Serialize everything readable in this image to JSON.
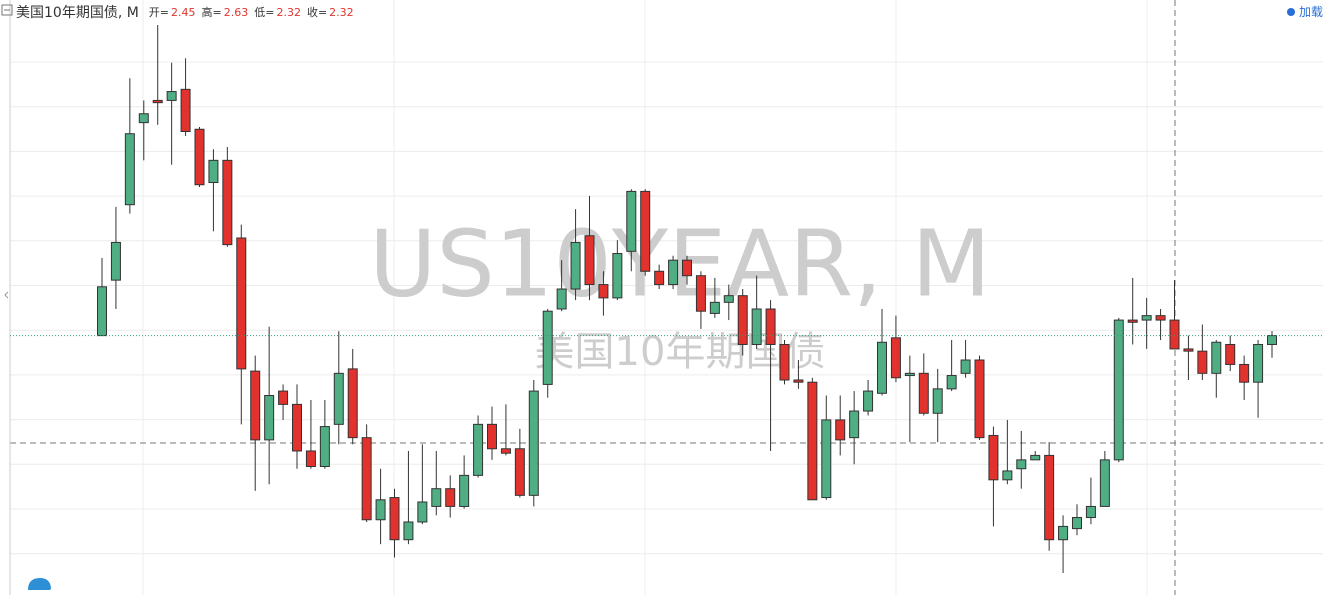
{
  "chart_data": {
    "type": "candlestick",
    "title": "美国10年期国债, M",
    "watermark": "US10YEAR, M",
    "watermark_subtitle": "美国10年期国债",
    "ohlc_labels": {
      "open": "开=",
      "high": "高=",
      "low": "低=",
      "close": "收="
    },
    "load_button": "加载",
    "up_color": "#4fae84",
    "down_color": "#e2322d",
    "open": [
      2.38,
      2.63,
      2.97,
      3.34,
      3.44,
      3.44,
      3.49,
      3.31,
      3.07,
      3.17,
      2.82,
      2.22,
      1.91,
      2.13,
      2.07,
      1.86,
      1.79,
      1.98,
      2.23,
      1.92,
      1.55,
      1.65,
      1.46,
      1.54,
      1.61,
      1.69,
      1.61,
      1.75,
      1.98,
      1.87,
      1.87,
      1.66,
      2.16,
      2.5,
      2.59,
      2.83,
      2.61,
      2.55,
      2.76,
      3.03,
      2.67,
      2.61,
      2.72,
      2.65,
      2.48,
      2.53,
      2.56,
      2.34,
      2.5,
      2.34,
      2.18,
      2.17,
      1.65,
      2.0,
      1.92,
      2.04,
      2.12,
      2.37,
      2.2,
      2.21,
      2.03,
      2.14,
      2.21,
      2.27,
      1.93,
      1.73,
      1.78,
      1.82,
      1.84,
      1.46,
      1.51,
      1.56,
      1.61,
      1.82,
      2.45,
      2.45,
      2.47,
      2.45,
      2.32,
      2.31,
      2.21,
      2.34,
      2.25,
      2.17,
      2.34
    ],
    "high": [
      2.73,
      2.96,
      3.54,
      3.44,
      3.78,
      3.61,
      3.63,
      3.32,
      3.22,
      3.23,
      2.88,
      2.29,
      2.42,
      2.16,
      2.16,
      2.09,
      2.09,
      2.4,
      2.32,
      1.98,
      1.78,
      1.69,
      1.86,
      1.89,
      1.86,
      1.75,
      1.84,
      2.02,
      2.06,
      2.07,
      1.96,
      2.18,
      2.5,
      2.72,
      2.95,
      3.01,
      2.67,
      2.81,
      3.04,
      3.04,
      2.7,
      2.74,
      2.74,
      2.67,
      2.64,
      2.61,
      2.59,
      2.65,
      2.54,
      2.36,
      2.27,
      2.19,
      2.11,
      2.11,
      2.13,
      2.18,
      2.5,
      2.47,
      2.29,
      2.3,
      2.23,
      2.36,
      2.36,
      2.29,
      1.97,
      2.0,
      1.95,
      1.86,
      1.9,
      1.57,
      1.62,
      1.74,
      1.86,
      2.46,
      2.64,
      2.55,
      2.5,
      2.63,
      2.38,
      2.43,
      2.36,
      2.38,
      2.29,
      2.36,
      2.4
    ],
    "low": [
      2.38,
      2.5,
      2.93,
      3.17,
      3.33,
      3.15,
      3.28,
      3.05,
      2.85,
      2.78,
      1.98,
      1.68,
      1.71,
      2.0,
      1.78,
      1.78,
      1.78,
      1.89,
      1.89,
      1.54,
      1.44,
      1.38,
      1.44,
      1.53,
      1.57,
      1.56,
      1.6,
      1.74,
      1.82,
      1.84,
      1.65,
      1.61,
      2.1,
      2.49,
      2.54,
      2.54,
      2.47,
      2.54,
      2.67,
      2.65,
      2.59,
      2.59,
      2.61,
      2.41,
      2.46,
      2.45,
      2.29,
      2.32,
      1.86,
      2.16,
      2.14,
      1.64,
      1.64,
      1.84,
      1.8,
      2.02,
      2.11,
      2.17,
      1.9,
      2.02,
      1.9,
      2.13,
      2.19,
      1.91,
      1.52,
      1.71,
      1.69,
      1.82,
      1.41,
      1.31,
      1.48,
      1.53,
      1.61,
      1.81,
      2.34,
      2.32,
      2.36,
      2.32,
      2.18,
      2.18,
      2.1,
      2.22,
      2.09,
      2.01,
      2.28
    ],
    "close": [
      2.6,
      2.8,
      3.29,
      3.38,
      3.43,
      3.48,
      3.3,
      3.06,
      3.17,
      2.79,
      2.23,
      1.91,
      2.11,
      2.07,
      1.86,
      1.79,
      1.97,
      2.21,
      1.92,
      1.55,
      1.64,
      1.46,
      1.54,
      1.63,
      1.69,
      1.61,
      1.75,
      1.98,
      1.87,
      1.85,
      1.66,
      2.13,
      2.49,
      2.59,
      2.8,
      2.61,
      2.55,
      2.75,
      3.03,
      2.67,
      2.61,
      2.72,
      2.65,
      2.49,
      2.53,
      2.56,
      2.34,
      2.5,
      2.34,
      2.18,
      2.17,
      1.64,
      2.0,
      1.91,
      2.04,
      2.13,
      2.35,
      2.19,
      2.21,
      2.03,
      2.14,
      2.2,
      2.27,
      1.92,
      1.73,
      1.77,
      1.82,
      1.84,
      1.46,
      1.52,
      1.56,
      1.61,
      1.82,
      2.45,
      2.44,
      2.47,
      2.45,
      2.32,
      2.31,
      2.21,
      2.35,
      2.25,
      2.17,
      2.34,
      2.38
    ]
  }
}
